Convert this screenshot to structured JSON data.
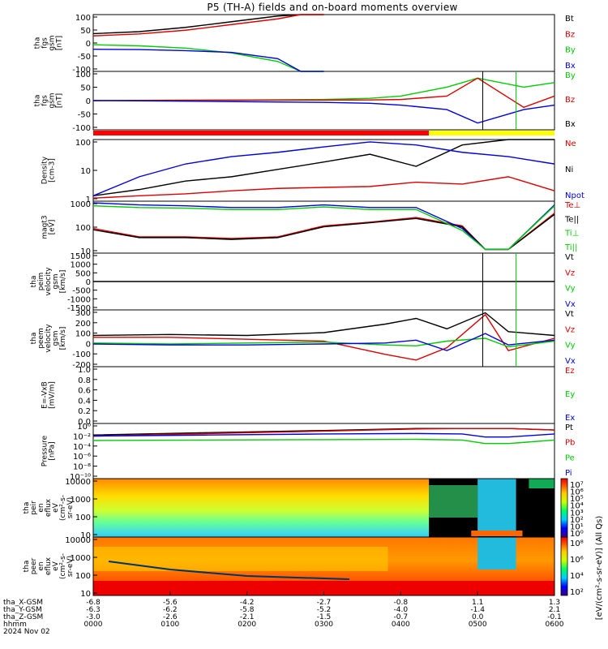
{
  "title": "P5 (TH-A) fields and on-board moments overview",
  "colors": {
    "black": "#000000",
    "red": "#dd0000",
    "green": "#00cc00",
    "blue": "#0000dd",
    "bar_red": "#ff0000",
    "bar_yellow": "#ffff00"
  },
  "panels": [
    {
      "id": "fgs",
      "ylabel": [
        "tha",
        "fgs",
        "gsm",
        "[nT]"
      ],
      "ticks": [
        "100",
        "50",
        "0",
        "-50",
        "-100"
      ],
      "legend": [
        {
          "text": "Bt",
          "color": "#000000"
        },
        {
          "text": "Bz",
          "color": "#dd0000"
        },
        {
          "text": "By",
          "color": "#00cc00"
        },
        {
          "text": "Bx",
          "color": "#0000dd"
        }
      ]
    },
    {
      "id": "fgs_dsl",
      "ylabel": [
        "tha",
        "fgs",
        "gsm",
        "[nT]"
      ],
      "ticks": [
        "100",
        "50",
        "0",
        "-50",
        "-100"
      ],
      "legend": [
        {
          "text": "By",
          "color": "#00cc00"
        },
        {
          "text": "Bz",
          "color": "#dd0000"
        },
        {
          "text": "Bx",
          "color": "#000000"
        }
      ]
    },
    {
      "id": "density",
      "ylabel": [
        "Density",
        "[cm-3]"
      ],
      "ticks": [
        "100",
        "10",
        "1"
      ],
      "legend": [
        {
          "text": "Ne",
          "color": "#dd0000"
        },
        {
          "text": "Ni",
          "color": "#000000"
        },
        {
          "text": "Npot",
          "color": "#0000dd"
        }
      ]
    },
    {
      "id": "temp",
      "ylabel": [
        "magt3",
        "[eV]"
      ],
      "ticks": [
        "1000",
        "100",
        "10"
      ],
      "legend": [
        {
          "text": "Te⊥",
          "color": "#dd0000"
        },
        {
          "text": "Te||",
          "color": "#000000"
        },
        {
          "text": "Ti⊥",
          "color": "#00cc00"
        },
        {
          "text": "Ti||",
          "color": "#00cc00"
        }
      ]
    },
    {
      "id": "peim",
      "ylabel": [
        "tha",
        "peim",
        "velocity",
        "gsm",
        "[km/s]"
      ],
      "ticks": [
        "1500",
        "1000",
        "500",
        "0",
        "-500",
        "-1000",
        "-1500"
      ],
      "legend": [
        {
          "text": "Vt",
          "color": "#000000"
        },
        {
          "text": "Vz",
          "color": "#dd0000"
        },
        {
          "text": "Vy",
          "color": "#00cc00"
        },
        {
          "text": "Vx",
          "color": "#0000dd"
        }
      ]
    },
    {
      "id": "peem",
      "ylabel": [
        "tha",
        "peem",
        "velocity",
        "gsm",
        "[km/s]"
      ],
      "ticks": [
        "300",
        "200",
        "100",
        "0",
        "-100",
        "-200"
      ],
      "legend": [
        {
          "text": "Vt",
          "color": "#000000"
        },
        {
          "text": "Vz",
          "color": "#dd0000"
        },
        {
          "text": "Vy",
          "color": "#00cc00"
        },
        {
          "text": "Vx",
          "color": "#0000dd"
        }
      ]
    },
    {
      "id": "efield",
      "ylabel": [
        "E=-VxB",
        "[mV/m]"
      ],
      "ticks": [
        "1.0",
        "0.8",
        "0.6",
        "0.4",
        "0.2",
        "0.0"
      ],
      "legend": [
        {
          "text": "Ez",
          "color": "#dd0000"
        },
        {
          "text": "Ey",
          "color": "#00cc00"
        },
        {
          "text": "Ex",
          "color": "#0000dd"
        }
      ]
    },
    {
      "id": "pressure",
      "ylabel": [
        "Pressure",
        "[nPa]"
      ],
      "ticks": [
        "10⁰",
        "10⁻²",
        "10⁻⁴",
        "10⁻⁶",
        "10⁻⁸",
        "10⁻¹⁰"
      ],
      "legend": [
        {
          "text": "Pt",
          "color": "#000000"
        },
        {
          "text": "Pb",
          "color": "#dd0000"
        },
        {
          "text": "Pe",
          "color": "#00cc00"
        },
        {
          "text": "Pi",
          "color": "#0000dd"
        }
      ]
    },
    {
      "id": "peir",
      "ylabel": [
        "tha",
        "peir",
        "en",
        "eflux",
        "eV",
        "(cm²-s-",
        "sr-eV)"
      ],
      "ticks": [
        "10000",
        "1000",
        "100",
        "10"
      ],
      "cbar_ticks": [
        "10⁷",
        "10⁶",
        "10⁵",
        "10⁴",
        "10³",
        "10²",
        "10¹",
        "10⁰"
      ],
      "cbar_label": "[eV/(cm²-s-sr-eV)] (All Qs)"
    },
    {
      "id": "peer",
      "ylabel": [
        "tha",
        "peer",
        "en",
        "eflux",
        "eV",
        "(cm²-s-",
        "sr-eV)"
      ],
      "ticks": [
        "10000",
        "1000",
        "100",
        "10"
      ],
      "cbar_ticks": [
        "10⁸",
        "10⁶",
        "10⁴",
        "10²"
      ],
      "cbar_label": "[eV/(cm²-s-sr-eV)] (All Qs)"
    }
  ],
  "xaxis": {
    "rows": [
      {
        "label": "tha_X-GSM",
        "values": [
          "-6.8",
          "-5.6",
          "-4.2",
          "-2.7",
          "-0.8",
          "1.1",
          "1.3"
        ]
      },
      {
        "label": "tha_Y-GSM",
        "values": [
          "-6.3",
          "-6.2",
          "-5.8",
          "-5.2",
          "-4.0",
          "-1.4",
          "2.1"
        ]
      },
      {
        "label": "tha_Z-GSM",
        "values": [
          "-3.0",
          "-2.6",
          "-2.1",
          "-1.5",
          "-0.7",
          "0.0",
          "-0.1"
        ]
      },
      {
        "label": "hhmm",
        "values": [
          "0000",
          "0100",
          "0200",
          "0300",
          "0400",
          "0500",
          "0600"
        ]
      }
    ],
    "date": "2024 Nov 02"
  },
  "chart_data": {
    "type": "line",
    "title": "P5 (TH-A) fields and on-board moments overview",
    "x": [
      "0000",
      "0100",
      "0200",
      "0300",
      "0400",
      "0500",
      "0600"
    ],
    "xlabel": "hhmm",
    "panels": [
      {
        "name": "tha fgs gsm [nT]",
        "ylim": [
          -100,
          100
        ],
        "series": [
          {
            "name": "Bt",
            "x": [
              0,
              60,
              120,
              180,
              240,
              270,
              300
            ],
            "values": [
              33,
              40,
              55,
              75,
              95,
              100,
              100
            ]
          },
          {
            "name": "Bz",
            "x": [
              0,
              60,
              120,
              180,
              240,
              270,
              300
            ],
            "values": [
              25,
              32,
              45,
              65,
              85,
              100,
              100
            ]
          },
          {
            "name": "By",
            "x": [
              0,
              60,
              120,
              180,
              240,
              270,
              300
            ],
            "values": [
              -6,
              -10,
              -18,
              -35,
              -65,
              -100,
              -100
            ]
          },
          {
            "name": "Bx",
            "x": [
              0,
              60,
              120,
              180,
              240,
              270,
              300
            ],
            "values": [
              -22,
              -23,
              -27,
              -33,
              -55,
              -100,
              -100
            ]
          }
        ]
      },
      {
        "name": "tha fgs gsm [nT] (2)",
        "ylim": [
          -130,
          130
        ],
        "series": [
          {
            "name": "By",
            "x": [
              0,
              100,
              200,
              300,
              360,
              400,
              460,
              500,
              560,
              600
            ],
            "values": [
              0,
              2,
              3,
              5,
              10,
              20,
              60,
              100,
              60,
              80
            ]
          },
          {
            "name": "Bz",
            "x": [
              0,
              100,
              200,
              300,
              360,
              400,
              460,
              500,
              560,
              600
            ],
            "values": [
              0,
              1,
              2,
              2,
              3,
              5,
              20,
              100,
              -30,
              20
            ]
          },
          {
            "name": "Bx",
            "x": [
              0,
              100,
              200,
              300,
              360,
              400,
              460,
              500,
              560,
              600
            ],
            "values": [
              0,
              -2,
              -5,
              -8,
              -12,
              -20,
              -40,
              -100,
              -40,
              -20
            ]
          }
        ]
      },
      {
        "name": "Density [cm-3]",
        "ylim": [
          0.3,
          100
        ],
        "log": true,
        "series": [
          {
            "name": "Ne",
            "x": [
              0,
              60,
              120,
              180,
              240,
              300,
              360,
              420,
              480,
              540,
              600
            ],
            "values": [
              0.4,
              0.5,
              0.6,
              0.8,
              1.0,
              1.1,
              1.2,
              1.8,
              1.5,
              3,
              0.8
            ]
          },
          {
            "name": "Ni",
            "x": [
              0,
              60,
              120,
              180,
              240,
              300,
              360,
              420,
              480,
              540,
              600
            ],
            "values": [
              0.5,
              0.9,
              2,
              3,
              6,
              12,
              25,
              8,
              60,
              100,
              100
            ]
          },
          {
            "name": "Npot",
            "x": [
              0,
              60,
              120,
              180,
              240,
              300,
              360,
              420,
              480,
              540,
              600
            ],
            "values": [
              0.5,
              3,
              10,
              20,
              30,
              50,
              80,
              60,
              30,
              20,
              10
            ]
          }
        ]
      },
      {
        "name": "magt3 [eV]",
        "ylim": [
          10,
          3000
        ],
        "log": true,
        "series": [
          {
            "name": "Te⊥",
            "x": [
              0,
              60,
              120,
              180,
              240,
              300,
              360,
              420,
              480,
              510,
              540,
              600
            ],
            "values": [
              150,
              60,
              60,
              50,
              60,
              200,
              300,
              500,
              200,
              15,
              15,
              800
            ]
          },
          {
            "name": "Te||",
            "x": [
              0,
              60,
              120,
              180,
              240,
              300,
              360,
              420,
              480,
              510,
              540,
              600
            ],
            "values": [
              130,
              55,
              55,
              45,
              55,
              180,
              280,
              450,
              180,
              15,
              15,
              700
            ]
          },
          {
            "name": "Ti⊥",
            "x": [
              0,
              60,
              120,
              180,
              240,
              300,
              360,
              420,
              480,
              510,
              540,
              600
            ],
            "values": [
              2500,
              2000,
              1800,
              1500,
              1500,
              2000,
              1500,
              1500,
              150,
              15,
              15,
              2000
            ]
          },
          {
            "name": "Ti||",
            "x": [
              0,
              60,
              120,
              180,
              240,
              300,
              360,
              420,
              480,
              510,
              540,
              600
            ],
            "values": [
              1800,
              1500,
              1400,
              1200,
              1200,
              1600,
              1200,
              1200,
              120,
              15,
              15,
              1800
            ]
          }
        ]
      },
      {
        "name": "tha peim velocity gsm [km/s]",
        "ylim": [
          -1500,
          1500
        ],
        "series": [
          {
            "name": "Vt",
            "x": [
              0,
              600
            ],
            "values": [
              0,
              0
            ]
          }
        ]
      },
      {
        "name": "tha peem velocity gsm [km/s]",
        "ylim": [
          -250,
          350
        ],
        "series": [
          {
            "name": "Vt",
            "x": [
              0,
              100,
              200,
              300,
              380,
              420,
              460,
              510,
              540,
              600
            ],
            "values": [
              80,
              90,
              80,
              110,
              200,
              260,
              150,
              320,
              120,
              80
            ]
          },
          {
            "name": "Vz",
            "x": [
              0,
              100,
              200,
              300,
              380,
              420,
              460,
              510,
              540,
              600
            ],
            "values": [
              60,
              60,
              40,
              20,
              -120,
              -180,
              -50,
              300,
              -80,
              50
            ]
          },
          {
            "name": "Vy",
            "x": [
              0,
              100,
              200,
              300,
              380,
              420,
              460,
              510,
              540,
              600
            ],
            "values": [
              0,
              -10,
              0,
              10,
              -20,
              -30,
              20,
              50,
              -40,
              20
            ]
          },
          {
            "name": "Vx",
            "x": [
              0,
              100,
              200,
              300,
              380,
              420,
              460,
              510,
              540,
              600
            ],
            "values": [
              -10,
              -20,
              -20,
              -10,
              0,
              30,
              -80,
              100,
              -20,
              30
            ]
          }
        ]
      },
      {
        "name": "E=-VxB [mV/m]",
        "ylim": [
          0,
          1
        ],
        "series": []
      },
      {
        "name": "Pressure [nPa]",
        "ylim": [
          1e-10,
          10
        ],
        "log": true,
        "series": [
          {
            "name": "Pt",
            "x": [
              0,
              150,
              300,
              420,
              480,
              510,
              540,
              600
            ],
            "values": [
              0.05,
              0.15,
              0.4,
              1.0,
              1.0,
              1.0,
              1.0,
              0.5
            ]
          },
          {
            "name": "Pb",
            "x": [
              0,
              150,
              300,
              420,
              480,
              510,
              540,
              600
            ],
            "values": [
              0.03,
              0.1,
              0.3,
              0.8,
              1.0,
              1.0,
              1.0,
              0.5
            ]
          },
          {
            "name": "Pe",
            "x": [
              0,
              150,
              300,
              420,
              480,
              510,
              540,
              600
            ],
            "values": [
              0.004,
              0.005,
              0.006,
              0.007,
              0.005,
              0.001,
              0.001,
              0.005
            ]
          },
          {
            "name": "Pi",
            "x": [
              0,
              150,
              300,
              420,
              480,
              510,
              540,
              600
            ],
            "values": [
              0.03,
              0.05,
              0.08,
              0.1,
              0.08,
              0.02,
              0.02,
              0.08
            ]
          }
        ]
      }
    ]
  }
}
